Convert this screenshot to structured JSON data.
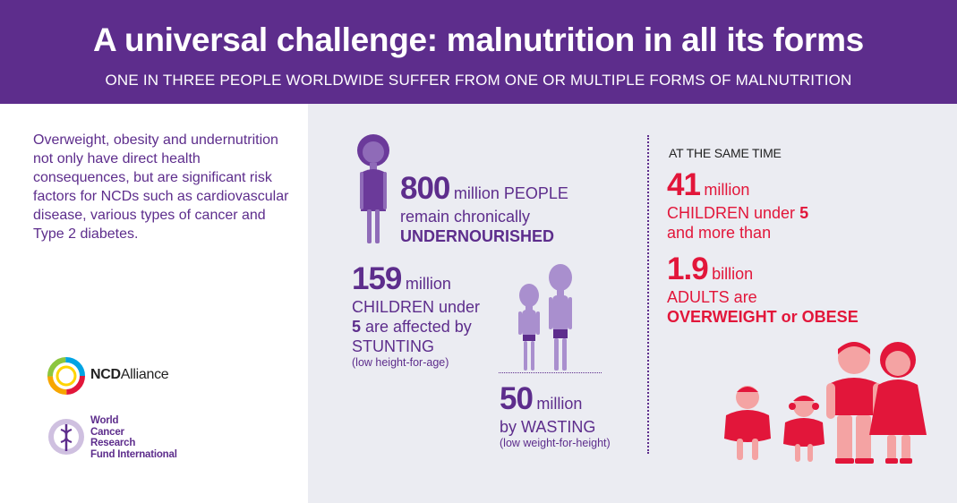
{
  "header": {
    "title": "A universal challenge: malnutrition in all its forms",
    "subtitle": "ONE IN THREE PEOPLE WORLDWIDE SUFFER FROM ONE OR MULTIPLE FORMS OF MALNUTRITION"
  },
  "intro": "Overweight, obesity and undernutrition not only have direct health consequences, but are significant risk factors for NCDs such as cardiovascular disease, various types of cancer and Type 2 diabetes.",
  "stats": {
    "undernourished": {
      "number": "800",
      "unit": "million PEOPLE",
      "line1": "remain chronically",
      "line2": "UNDERNOURISHED"
    },
    "stunting": {
      "number": "159",
      "unit": "million",
      "line1": "CHILDREN under",
      "line2_num": "5",
      "line2": " are affected by",
      "line3": "STUNTING",
      "note": "(low height-for-age)"
    },
    "wasting": {
      "number": "50",
      "unit": "million",
      "line1": "by WASTING",
      "note": "(low weight-for-height)"
    },
    "same_time": "AT THE SAME TIME",
    "children_overweight": {
      "number": "41",
      "unit": "million",
      "line1": "CHILDREN under ",
      "line1_num": "5",
      "line2": "and more than"
    },
    "adults_overweight": {
      "number": "1.9",
      "unit": "billion",
      "line1": "ADULTS are",
      "line2": "OVERWEIGHT or OBESE"
    }
  },
  "logos": {
    "ncd_bold": "NCD",
    "ncd_rest": "Alliance",
    "wcrf_lines": [
      "World",
      "Cancer",
      "Research",
      "Fund International"
    ]
  },
  "colors": {
    "purple": "#5d2d8c",
    "red": "#e2163a",
    "panel": "#ebecf2"
  }
}
